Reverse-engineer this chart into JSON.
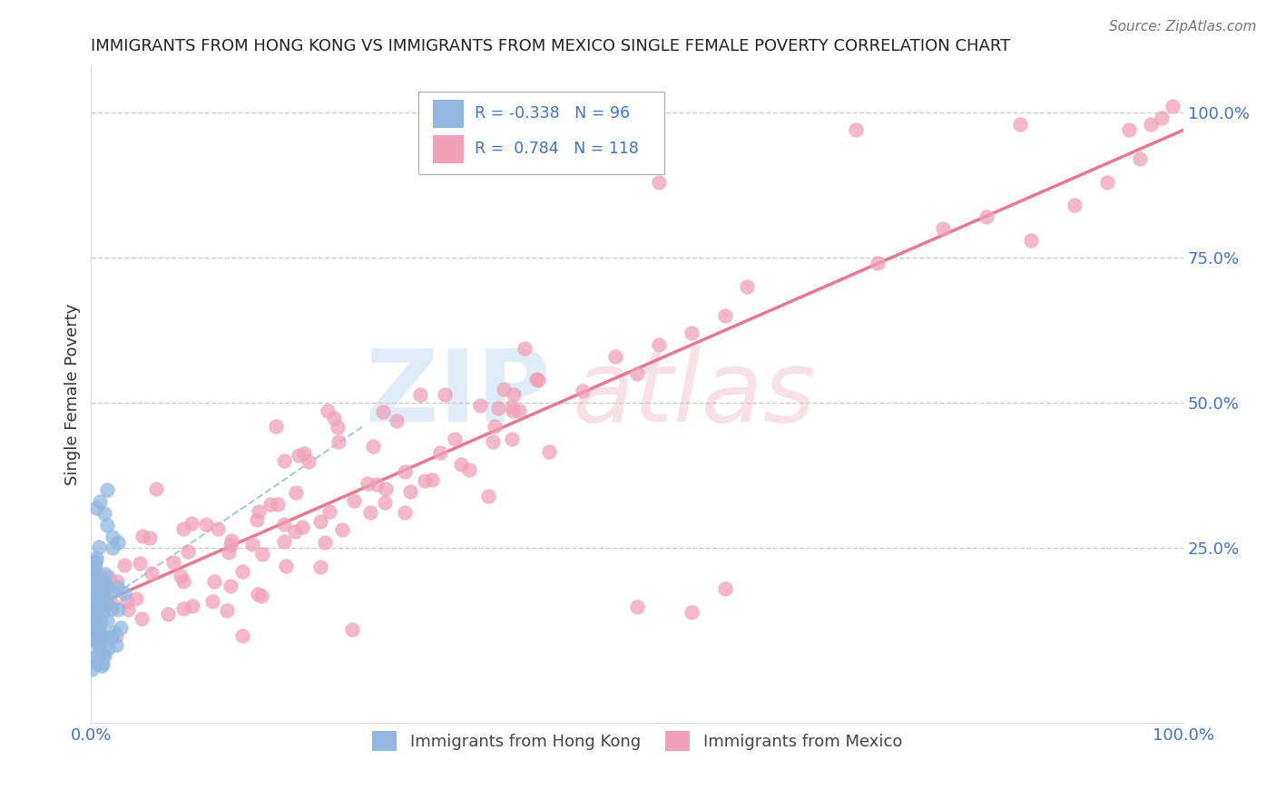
{
  "title": "IMMIGRANTS FROM HONG KONG VS IMMIGRANTS FROM MEXICO SINGLE FEMALE POVERTY CORRELATION CHART",
  "source": "Source: ZipAtlas.com",
  "ylabel": "Single Female Poverty",
  "right_yticks": [
    "100.0%",
    "75.0%",
    "50.0%",
    "25.0%"
  ],
  "right_ytick_vals": [
    1.0,
    0.75,
    0.5,
    0.25
  ],
  "legend_hk_r": "-0.338",
  "legend_hk_n": "96",
  "legend_mx_r": "0.784",
  "legend_mx_n": "118",
  "legend_label_hk": "Immigrants from Hong Kong",
  "legend_label_mx": "Immigrants from Mexico",
  "hk_color": "#90b8e0",
  "mx_color": "#f0a0b8",
  "hk_line_color": "#aac8e8",
  "mx_line_color": "#e87890",
  "title_color": "#222222",
  "axis_label_color": "#4472c4",
  "legend_text_color": "#4472c4",
  "background_color": "#ffffff",
  "xlim": [
    0,
    1
  ],
  "ylim": [
    -0.05,
    1.05
  ]
}
